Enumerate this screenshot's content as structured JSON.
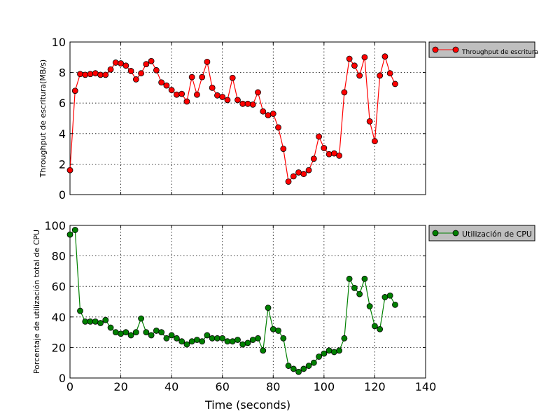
{
  "figure": {
    "xlabel": "Time (seconds)"
  },
  "chart_data": [
    {
      "type": "line",
      "ylabel": "Throughput de escritura(MB/s)",
      "xlim": [
        0,
        140
      ],
      "ylim": [
        0,
        10
      ],
      "x_ticks": [
        "0",
        "20",
        "40",
        "60",
        "80",
        "100",
        "120",
        "140"
      ],
      "y_ticks": [
        "0",
        "2",
        "4",
        "6",
        "8",
        "10"
      ],
      "grid": true,
      "legend_position": "outside-right-top",
      "series": [
        {
          "name": "Throughput de escritura",
          "color": "#ff0000",
          "x": [
            0,
            2,
            4,
            6,
            8,
            10,
            12,
            14,
            16,
            18,
            20,
            22,
            24,
            26,
            28,
            30,
            32,
            34,
            36,
            38,
            40,
            42,
            44,
            46,
            48,
            50,
            52,
            54,
            56,
            58,
            60,
            62,
            64,
            66,
            68,
            70,
            72,
            74,
            76,
            78,
            80,
            82,
            84,
            86,
            88,
            90,
            92,
            94,
            96,
            98,
            100,
            102,
            104,
            106,
            108,
            110,
            112,
            114,
            116,
            118,
            120,
            122,
            124,
            126,
            128
          ],
          "y": [
            1.6,
            6.8,
            7.9,
            7.85,
            7.9,
            7.95,
            7.85,
            7.85,
            8.2,
            8.65,
            8.6,
            8.45,
            8.1,
            7.55,
            7.95,
            8.55,
            8.75,
            8.15,
            7.35,
            7.15,
            6.85,
            6.55,
            6.6,
            6.1,
            7.7,
            6.55,
            7.7,
            8.7,
            7.0,
            6.5,
            6.4,
            6.2,
            7.65,
            6.2,
            5.95,
            5.95,
            5.9,
            6.7,
            5.45,
            5.2,
            5.3,
            4.4,
            3.0,
            0.85,
            1.2,
            1.45,
            1.35,
            1.6,
            2.35,
            3.8,
            3.05,
            2.65,
            2.7,
            2.55,
            6.7,
            8.9,
            8.45,
            7.8,
            9.0,
            4.8,
            3.5,
            7.8,
            9.05,
            7.95,
            7.25
          ]
        }
      ]
    },
    {
      "type": "line",
      "ylabel": "Porcentaje de utilización total de CPU",
      "xlim": [
        0,
        140
      ],
      "ylim": [
        0,
        100
      ],
      "x_ticks": [
        "0",
        "20",
        "40",
        "60",
        "80",
        "100",
        "120",
        "140"
      ],
      "y_ticks": [
        "0",
        "20",
        "40",
        "60",
        "80",
        "100"
      ],
      "grid": true,
      "legend_position": "outside-right-top",
      "series": [
        {
          "name": "Utilización de CPU",
          "color": "#008000",
          "x": [
            0,
            2,
            4,
            6,
            8,
            10,
            12,
            14,
            16,
            18,
            20,
            22,
            24,
            26,
            28,
            30,
            32,
            34,
            36,
            38,
            40,
            42,
            44,
            46,
            48,
            50,
            52,
            54,
            56,
            58,
            60,
            62,
            64,
            66,
            68,
            70,
            72,
            74,
            76,
            78,
            80,
            82,
            84,
            86,
            88,
            90,
            92,
            94,
            96,
            98,
            100,
            102,
            104,
            106,
            108,
            110,
            112,
            114,
            116,
            118,
            120,
            122,
            124,
            126,
            128
          ],
          "y": [
            94,
            97,
            44,
            37,
            37,
            37,
            36,
            38,
            33,
            30,
            29,
            30,
            28,
            30,
            39,
            30,
            28,
            31,
            30,
            26,
            28,
            26,
            24,
            22,
            24,
            25,
            24,
            28,
            26,
            26,
            26,
            24,
            24,
            25,
            22,
            23,
            25,
            26,
            18,
            46,
            32,
            31,
            26,
            8,
            6,
            4,
            6,
            8,
            10,
            14,
            16,
            18,
            17,
            18,
            26,
            65,
            59,
            55,
            65,
            47,
            34,
            32,
            53,
            54,
            48
          ]
        }
      ]
    }
  ]
}
